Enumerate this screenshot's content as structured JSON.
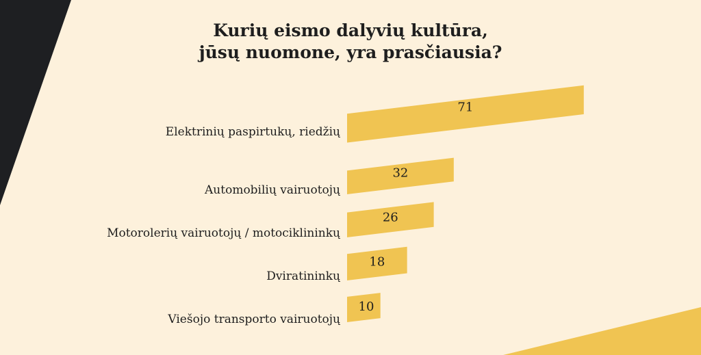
{
  "title_line1": "Kurių eismo dalyvių kultūra,",
  "title_line2": "jūsų nuomone, yra prasčiausia?",
  "colors": {
    "bar": "#f0c452",
    "background": "#fdf1dc",
    "dark": "#1e1f22"
  },
  "chart_data": {
    "type": "bar",
    "orientation": "horizontal",
    "title": "Kurių eismo dalyvių kultūra, jūsų nuomone, yra prasčiausia?",
    "categories": [
      "Elektrinių paspirtukų, riedžių",
      "Automobilių vairuotojų",
      "Motorolerių vairuotojų / motociklininkų",
      "Dviratininkų",
      "Viešojo transporto vairuotojų"
    ],
    "values": [
      71,
      32,
      26,
      18,
      10
    ],
    "data_labels": [
      "71",
      "32",
      "26",
      "18",
      "10"
    ]
  }
}
